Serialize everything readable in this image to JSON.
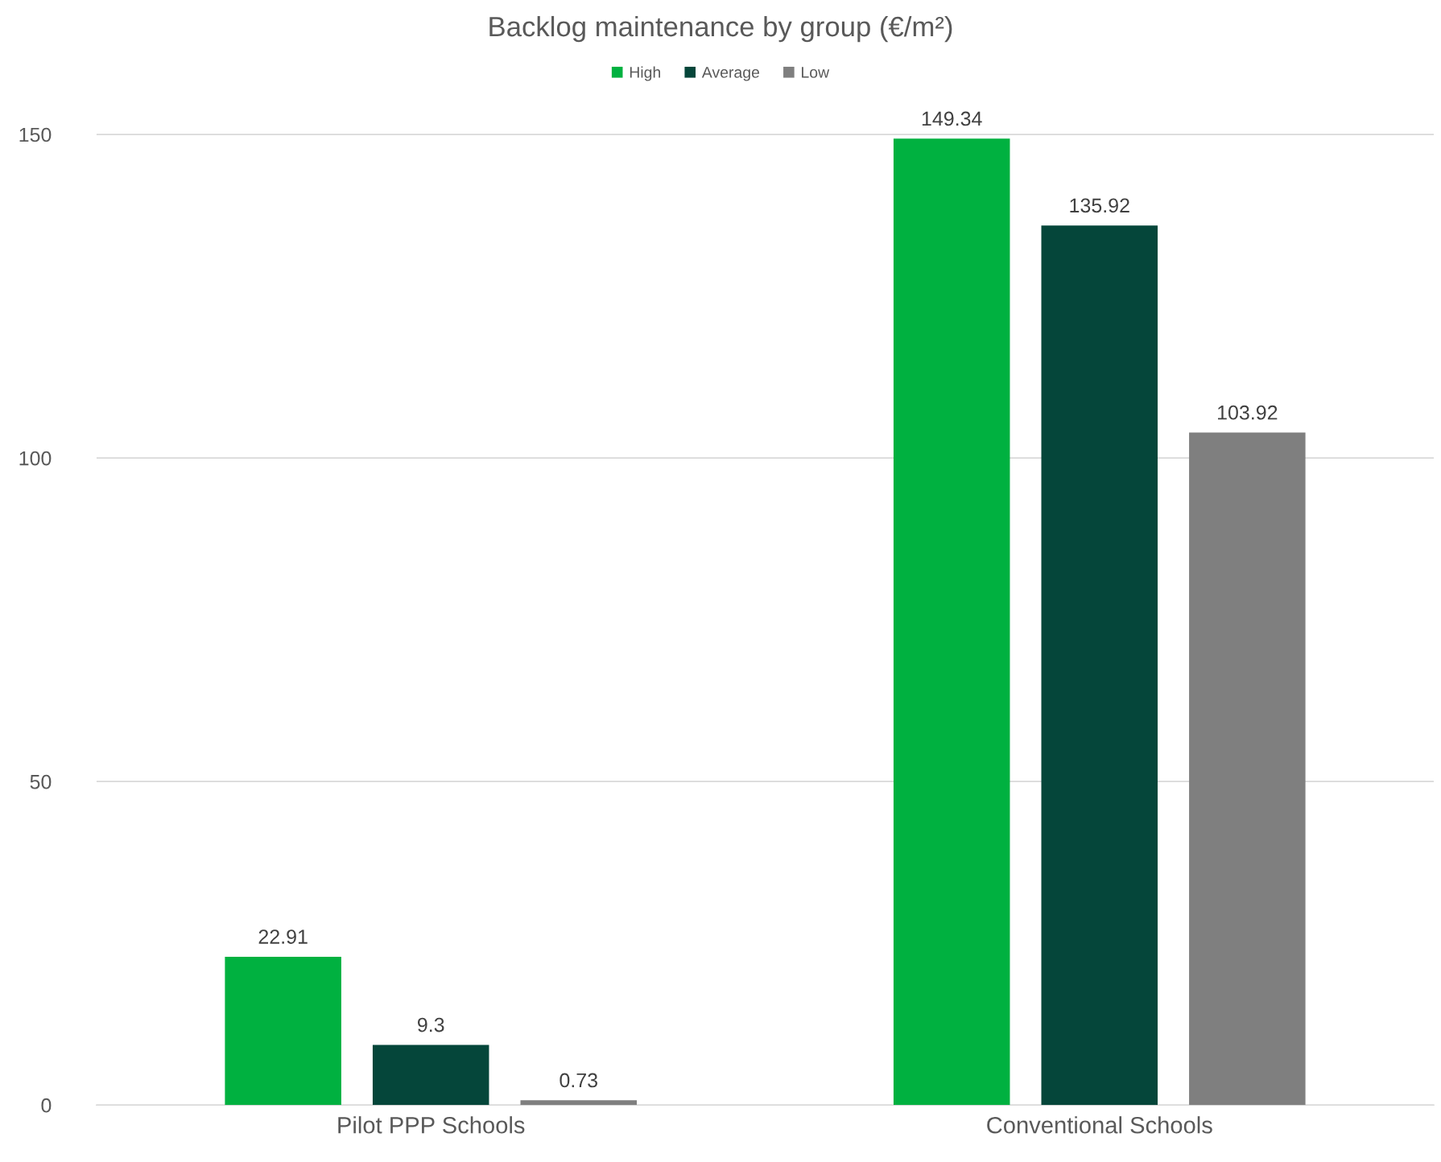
{
  "chart_data": {
    "type": "bar",
    "title": "Backlog maintenance by group (€/m²)",
    "categories": [
      "Pilot PPP Schools",
      "Conventional Schools"
    ],
    "series": [
      {
        "name": "High",
        "color": "#00b140",
        "values": [
          22.91,
          149.34
        ]
      },
      {
        "name": "Average",
        "color": "#05463a",
        "values": [
          9.3,
          135.92
        ]
      },
      {
        "name": "Low",
        "color": "#7f7f7f",
        "values": [
          0.73,
          103.92
        ]
      }
    ],
    "ylim": [
      0,
      160
    ],
    "yticks": [
      0,
      50,
      100,
      150
    ],
    "grid": "y",
    "legend": "top",
    "data_labels": true
  }
}
